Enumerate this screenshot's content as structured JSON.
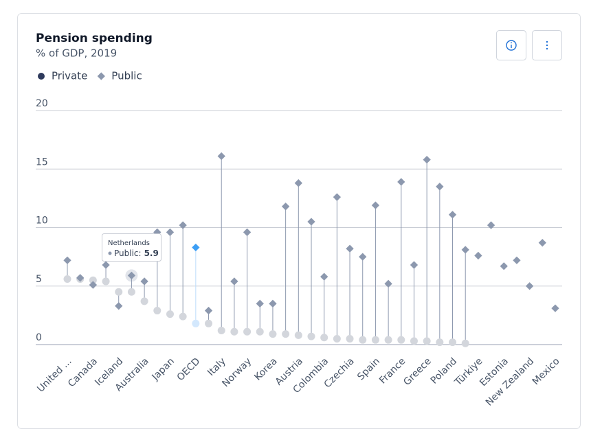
{
  "chart_data": {
    "type": "dot",
    "title": "Pension spending",
    "subtitle": "% of GDP, 2019",
    "categories": [
      "United ...",
      null,
      "Canada",
      null,
      "Iceland",
      null,
      "Australia",
      null,
      "Japan",
      null,
      "OECD",
      null,
      "Italy",
      null,
      "Norway",
      null,
      "Korea",
      null,
      "Austria",
      null,
      "Colombia",
      null,
      "Czechia",
      null,
      "Spain",
      null,
      "France",
      null,
      "Greece",
      null,
      "Poland",
      null,
      "Türkiye",
      null,
      "Estonia",
      null,
      "New Zealand",
      null,
      "Mexico"
    ],
    "series": [
      {
        "name": "Private",
        "color": "#2e3a5c",
        "marker": "circle",
        "values": [
          5.6,
          5.6,
          5.5,
          5.4,
          4.5,
          4.5,
          3.7,
          2.9,
          2.6,
          2.4,
          1.8,
          1.8,
          1.2,
          1.1,
          1.1,
          1.1,
          0.9,
          0.9,
          0.8,
          0.7,
          0.6,
          0.5,
          0.5,
          0.4,
          0.4,
          0.4,
          0.4,
          0.3,
          0.3,
          0.2,
          0.2,
          0.1,
          null,
          null,
          null,
          null,
          null,
          null,
          null
        ]
      },
      {
        "name": "Public",
        "color": "#8c98ae",
        "marker": "diamond",
        "values": [
          7.2,
          5.7,
          5.1,
          6.8,
          3.3,
          5.9,
          5.4,
          9.6,
          9.6,
          10.2,
          8.3,
          2.9,
          16.1,
          5.4,
          9.6,
          3.5,
          3.5,
          11.8,
          13.8,
          10.5,
          5.8,
          12.6,
          8.2,
          7.5,
          11.9,
          5.2,
          13.9,
          6.8,
          15.8,
          13.5,
          11.1,
          8.1,
          7.6,
          10.2,
          6.7,
          7.2,
          5.0,
          8.7,
          3.1
        ]
      }
    ],
    "ylim": [
      0,
      20
    ],
    "yticks": [
      0,
      5,
      10,
      15,
      20
    ],
    "grid": true,
    "legend": "top-left",
    "highlight_category": "OECD",
    "highlight_color": "#3d9ff5",
    "tooltip": {
      "category": "Netherlands"
    }
  }
}
